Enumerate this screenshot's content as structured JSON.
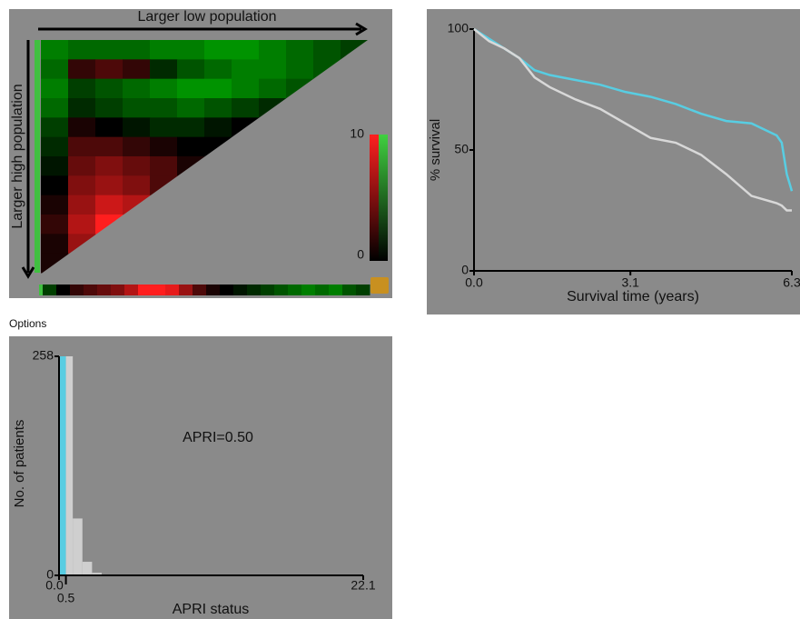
{
  "ui": {
    "options_label": "Options"
  },
  "chart_data": [
    {
      "type": "heatmap",
      "title": "Larger low population",
      "ylabel": "Larger high population",
      "clim": [
        0,
        10
      ],
      "colorbar_ticks": [
        0,
        10
      ],
      "matrix": [
        [
          -6,
          -5,
          -5,
          -5,
          -6,
          -6,
          -7,
          -7,
          -6,
          -5,
          -4,
          -3
        ],
        [
          -5,
          2,
          3,
          2,
          -2,
          -4,
          -5,
          -6,
          -6,
          -5,
          -4
        ],
        [
          -6,
          -3,
          -4,
          -5,
          -6,
          -7,
          -7,
          -6,
          -5,
          -4
        ],
        [
          -5,
          -2,
          -3,
          -4,
          -4,
          -5,
          -4,
          -3,
          -2
        ],
        [
          -3,
          1,
          0,
          -1,
          -2,
          -2,
          -1,
          0
        ],
        [
          -2,
          3,
          3,
          2,
          1,
          0,
          0
        ],
        [
          -1,
          4,
          5,
          4,
          3,
          1
        ],
        [
          0,
          5,
          6,
          5,
          3
        ],
        [
          1,
          6,
          8,
          7
        ],
        [
          2,
          7,
          10
        ],
        [
          1,
          6
        ],
        [
          1
        ]
      ],
      "strip": [
        -3,
        0,
        2,
        3,
        4,
        5,
        7,
        10,
        10,
        9,
        6,
        3,
        1,
        0,
        -1,
        -2,
        -3,
        -4,
        -5,
        -6,
        -5,
        -6,
        -4,
        -3
      ]
    },
    {
      "type": "line",
      "xlabel": "Survival time (years)",
      "ylabel": "% survival",
      "x": [
        0,
        0.3,
        0.6,
        0.9,
        1.2,
        1.5,
        2,
        2.5,
        3,
        3.5,
        4,
        4.5,
        5,
        5.5,
        6,
        6.1,
        6.2,
        6.3
      ],
      "series": [
        {
          "color": "#58cde2",
          "values": [
            100,
            96,
            92,
            88,
            83,
            81,
            79,
            77,
            74,
            72,
            69,
            65,
            62,
            61,
            56,
            53,
            40,
            33
          ]
        },
        {
          "color": "#d8d8d8",
          "values": [
            100,
            95,
            92,
            88,
            80,
            76,
            71,
            67,
            61,
            55,
            53,
            48,
            40,
            31,
            28,
            27,
            25,
            25
          ]
        }
      ],
      "xlim": [
        0,
        6.3
      ],
      "xticks": [
        {
          "value": 0,
          "label": "0.0"
        },
        3.1,
        6.3
      ],
      "ylim": [
        0,
        100
      ],
      "yticks": [
        0,
        50,
        100
      ]
    },
    {
      "type": "histogram",
      "xlabel": "APRI status",
      "ylabel": "No. of patients",
      "annotation": "APRI=0.50",
      "bins": [
        0,
        0.5,
        1.0,
        1.7,
        2.4,
        3.1,
        3.8,
        4.5,
        5.2,
        8.9,
        9.6
      ],
      "counts": [
        258,
        258,
        67,
        16,
        3,
        1,
        1,
        0,
        0,
        1
      ],
      "colors": [
        "#58cde2",
        "#cfcfcf",
        "#cfcfcf",
        "#cfcfcf",
        "#cfcfcf",
        "#cfcfcf",
        "#cfcfcf",
        "#cfcfcf",
        "#cfcfcf",
        "#cfcfcf"
      ],
      "xlim": [
        0,
        22.1
      ],
      "xticks": [
        {
          "value": 0,
          "label": "0.0"
        },
        {
          "value": 0.5,
          "label": "0.5"
        },
        22.1
      ],
      "ylim": [
        0,
        258
      ],
      "yticks": [
        0,
        258
      ]
    }
  ]
}
